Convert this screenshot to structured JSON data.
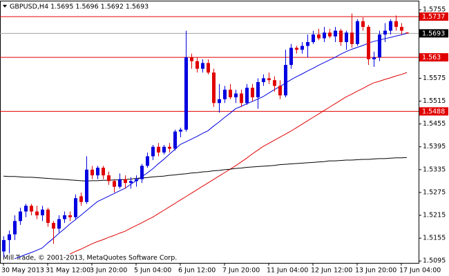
{
  "chart_data": {
    "type": "candlestick",
    "title": "GBPUSD,H4  1.5695 1.5696 1.5692 1.5693",
    "footer": "Mill Trade, © 2001-2013, MetaQuotes Software Corp.",
    "categories": [
      "30 May 2013",
      null,
      null,
      null,
      null,
      null,
      null,
      null,
      "31 May 12:00",
      null,
      null,
      null,
      null,
      null,
      null,
      null,
      "3 Jun 20:00",
      null,
      null,
      null,
      null,
      null,
      null,
      null,
      "5 Jun 04:00",
      null,
      null,
      null,
      null,
      null,
      null,
      null,
      "6 Jun 12:00",
      null,
      null,
      null,
      null,
      null,
      null,
      null,
      "7 Jun 20:00",
      null,
      null,
      null,
      null,
      null,
      null,
      null,
      "11 Jun 04:00",
      null,
      null,
      null,
      null,
      null,
      null,
      null,
      "12 Jun 12:00",
      null,
      null,
      null,
      null,
      null,
      null,
      null,
      "13 Jun 20:00",
      null,
      null,
      null,
      null,
      null,
      null,
      null,
      "17 Jun 04:00",
      null
    ],
    "open": [
      1.512,
      1.515,
      1.5165,
      1.52,
      1.5225,
      1.524,
      1.5225,
      1.5215,
      1.523,
      1.5195,
      1.518,
      1.5205,
      1.5215,
      1.521,
      1.5265,
      1.525,
      1.5335,
      1.532,
      1.534,
      1.532,
      1.5305,
      1.529,
      1.531,
      1.53,
      1.5305,
      1.531,
      1.5345,
      1.537,
      1.5395,
      1.538,
      1.5395,
      1.539,
      1.5435,
      1.544,
      1.563,
      1.562,
      1.56,
      1.5615,
      1.559,
      1.551,
      1.552,
      1.5545,
      1.5525,
      1.5535,
      1.551,
      1.555,
      1.5525,
      1.5565,
      1.5575,
      1.557,
      1.5555,
      1.553,
      1.561,
      1.5655,
      1.565,
      1.566,
      1.567,
      1.569,
      1.568,
      1.5695,
      1.5685,
      1.57,
      1.567,
      1.5695,
      1.5665,
      1.5725,
      1.571,
      1.5625,
      1.563,
      1.569,
      1.57,
      1.5725,
      1.571,
      1.5695
    ],
    "high": [
      1.516,
      1.5175,
      1.5215,
      1.5235,
      1.5245,
      1.5245,
      1.524,
      1.524,
      1.5235,
      1.52,
      1.5215,
      1.5225,
      1.5225,
      1.527,
      1.5275,
      1.537,
      1.5345,
      1.5345,
      1.5345,
      1.533,
      1.531,
      1.5325,
      1.532,
      1.5315,
      1.532,
      1.535,
      1.538,
      1.54,
      1.5405,
      1.54,
      1.5405,
      1.544,
      1.5445,
      1.57,
      1.564,
      1.563,
      1.5625,
      1.5625,
      1.56,
      1.556,
      1.5555,
      1.556,
      1.5545,
      1.5545,
      1.556,
      1.556,
      1.5575,
      1.5585,
      1.559,
      1.558,
      1.557,
      1.565,
      1.5665,
      1.566,
      1.567,
      1.569,
      1.57,
      1.5705,
      1.571,
      1.5705,
      1.571,
      1.5705,
      1.57,
      1.5745,
      1.573,
      1.5735,
      1.5715,
      1.5645,
      1.57,
      1.572,
      1.573,
      1.574,
      1.572,
      1.5696
    ],
    "low": [
      1.5105,
      1.5115,
      1.515,
      1.519,
      1.521,
      1.5215,
      1.5205,
      1.52,
      1.5185,
      1.514,
      1.517,
      1.5195,
      1.52,
      1.5205,
      1.524,
      1.5245,
      1.531,
      1.531,
      1.531,
      1.5295,
      1.5275,
      1.5285,
      1.5285,
      1.5285,
      1.529,
      1.53,
      1.534,
      1.536,
      1.537,
      1.5375,
      1.538,
      1.5385,
      1.542,
      1.5435,
      1.56,
      1.559,
      1.559,
      1.5585,
      1.55,
      1.5485,
      1.551,
      1.552,
      1.551,
      1.55,
      1.5505,
      1.5515,
      1.5495,
      1.5555,
      1.556,
      1.554,
      1.552,
      1.5525,
      1.56,
      1.564,
      1.564,
      1.563,
      1.5665,
      1.5675,
      1.567,
      1.568,
      1.567,
      1.566,
      1.565,
      1.5655,
      1.566,
      1.57,
      1.561,
      1.5605,
      1.562,
      1.567,
      1.569,
      1.57,
      1.569,
      1.5692
    ],
    "close": [
      1.515,
      1.5165,
      1.52,
      1.5225,
      1.524,
      1.5225,
      1.5215,
      1.523,
      1.5195,
      1.518,
      1.5205,
      1.5215,
      1.521,
      1.526,
      1.525,
      1.5335,
      1.532,
      1.534,
      1.532,
      1.5305,
      1.529,
      1.531,
      1.53,
      1.5305,
      1.531,
      1.5345,
      1.537,
      1.5395,
      1.538,
      1.5395,
      1.539,
      1.5435,
      1.544,
      1.563,
      1.562,
      1.56,
      1.5615,
      1.559,
      1.551,
      1.552,
      1.5545,
      1.5525,
      1.5535,
      1.551,
      1.555,
      1.5525,
      1.5565,
      1.5575,
      1.557,
      1.5555,
      1.553,
      1.561,
      1.5655,
      1.565,
      1.566,
      1.567,
      1.569,
      1.568,
      1.5695,
      1.5685,
      1.57,
      1.567,
      1.5695,
      1.5665,
      1.5725,
      1.571,
      1.5625,
      1.563,
      1.569,
      1.57,
      1.5725,
      1.571,
      1.57,
      1.5693
    ],
    "up_color": "#0000e0",
    "down_color": "#e00000",
    "series": [
      {
        "color": "#0000e0",
        "values": [
          null,
          null,
          1.5101,
          1.5106,
          1.5112,
          1.5117,
          1.5123,
          1.5129,
          1.5142,
          1.5154,
          1.5167,
          1.5179,
          1.5192,
          1.5203,
          1.5215,
          1.5227,
          1.5239,
          1.5251,
          1.5258,
          1.5265,
          1.5272,
          1.5279,
          1.5286,
          1.5296,
          1.5306,
          1.5316,
          1.5326,
          1.5337,
          1.535,
          1.5362,
          1.5375,
          1.5388,
          1.5401,
          1.5408,
          1.5415,
          1.5422,
          1.543,
          1.5437,
          1.5449,
          1.546,
          1.5472,
          1.5483,
          1.5495,
          1.5501,
          1.5508,
          1.5514,
          1.552,
          1.5527,
          1.5536,
          1.5545,
          1.5553,
          1.5562,
          1.5571,
          1.5579,
          1.5586,
          1.5594,
          1.5601,
          1.5609,
          1.5616,
          1.5623,
          1.563,
          1.5638,
          1.5645,
          1.5651,
          1.5656,
          1.5661,
          1.5667,
          1.5672,
          1.5675,
          1.5679,
          1.5682,
          1.5686,
          1.5689,
          1.5693
        ]
      },
      {
        "color": "#e00000",
        "values": [
          null,
          null,
          null,
          null,
          null,
          null,
          null,
          null,
          null,
          null,
          null,
          null,
          1.5113,
          1.512,
          1.5126,
          1.5133,
          1.514,
          1.5146,
          1.5151,
          1.5157,
          1.5162,
          1.5168,
          1.5173,
          1.5181,
          1.5188,
          1.5195,
          1.5203,
          1.521,
          1.5219,
          1.5228,
          1.5237,
          1.5246,
          1.5255,
          1.5264,
          1.5273,
          1.5282,
          1.5291,
          1.53,
          1.5309,
          1.5318,
          1.5327,
          1.5336,
          1.5345,
          1.5355,
          1.5365,
          1.5376,
          1.5386,
          1.5396,
          1.5404,
          1.5412,
          1.542,
          1.5428,
          1.5436,
          1.5445,
          1.5454,
          1.5463,
          1.5472,
          1.5481,
          1.549,
          1.5499,
          1.5508,
          1.5517,
          1.5526,
          1.5533,
          1.5541,
          1.5548,
          1.5556,
          1.5563,
          1.5567,
          1.5572,
          1.5576,
          1.5581,
          1.5585,
          1.559
        ]
      },
      {
        "color": "#000000",
        "values": [
          1.5318,
          1.5317,
          1.5317,
          1.5316,
          1.5315,
          1.5315,
          1.5314,
          1.5313,
          1.5312,
          1.5311,
          1.531,
          1.5309,
          1.5308,
          1.5307,
          1.5306,
          1.5305,
          1.5306,
          1.5306,
          1.5307,
          1.5307,
          1.5308,
          1.5308,
          1.5309,
          1.531,
          1.5312,
          1.5313,
          1.5314,
          1.5316,
          1.5317,
          1.5318,
          1.532,
          1.5321,
          1.5323,
          1.5324,
          1.5326,
          1.5327,
          1.5329,
          1.533,
          1.5332,
          1.5333,
          1.5335,
          1.5336,
          1.5338,
          1.5339,
          1.5341,
          1.5342,
          1.5343,
          1.5344,
          1.5345,
          1.5346,
          1.5348,
          1.5349,
          1.535,
          1.5351,
          1.5352,
          1.5353,
          1.5354,
          1.5355,
          1.5356,
          1.5358,
          1.5358,
          1.5359,
          1.536,
          1.536,
          1.5361,
          1.5362,
          1.5362,
          1.5363,
          1.5364,
          1.5364,
          1.5365,
          1.5366,
          1.5366,
          1.5367
        ]
      }
    ],
    "levels": [
      {
        "value": 1.5737,
        "color": "#e00000"
      },
      {
        "value": 1.563,
        "color": "#e00000"
      },
      {
        "value": 1.5488,
        "color": "#e00000"
      }
    ],
    "bid": {
      "value": 1.5693,
      "color": "#a0a0a0"
    },
    "ylim": [
      1.509,
      1.5777
    ],
    "yticks": [
      1.5755,
      1.5575,
      1.5515,
      1.5455,
      1.5395,
      1.5335,
      1.5275,
      1.5215,
      1.5155,
      1.5095
    ]
  }
}
